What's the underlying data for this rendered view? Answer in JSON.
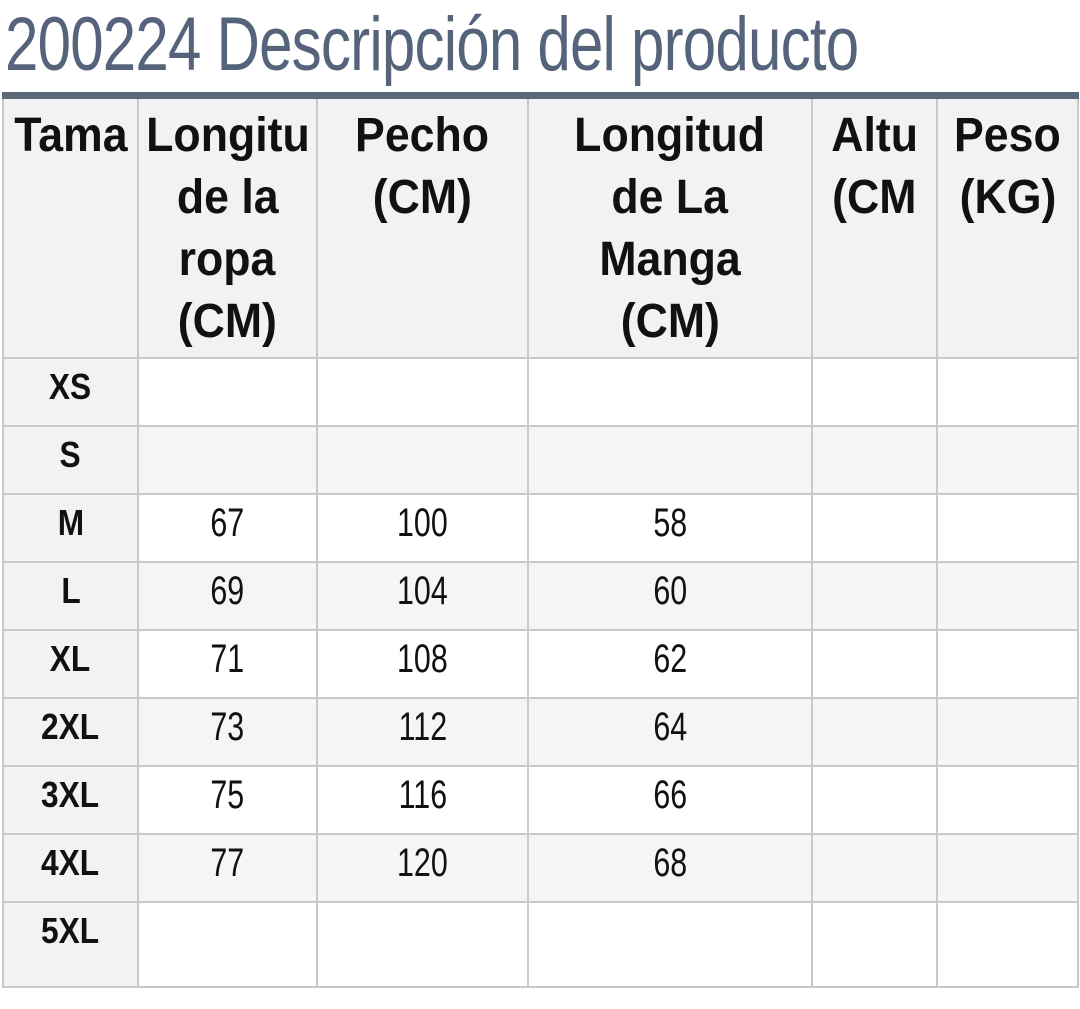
{
  "page": {
    "title": "200224 Descripción del producto"
  },
  "colors": {
    "title_text": "#55647b",
    "header_band": "#5a6877",
    "cell_border": "#c9c9cb",
    "header_bg": "#f2f2f5",
    "stripe_bg": "#f5f5f8",
    "cell_text": "#111111"
  },
  "size_table": {
    "columns": [
      {
        "name": "size",
        "lines": [
          "Tama"
        ]
      },
      {
        "name": "garment-length",
        "lines": [
          "Longitu",
          "de la",
          "ropa",
          "(CM)"
        ]
      },
      {
        "name": "chest",
        "lines": [
          "Pecho",
          "(CM)"
        ]
      },
      {
        "name": "sleeve-length",
        "lines": [
          "Longitud",
          "de La",
          "Manga",
          "(CM)"
        ]
      },
      {
        "name": "height",
        "lines": [
          "Altu",
          "(CM"
        ]
      },
      {
        "name": "weight",
        "lines": [
          "Peso",
          "(KG)"
        ]
      }
    ],
    "rows": [
      {
        "size": "XS",
        "values": [
          "",
          "",
          "",
          "",
          ""
        ]
      },
      {
        "size": "S",
        "values": [
          "",
          "",
          "",
          "",
          ""
        ]
      },
      {
        "size": "M",
        "values": [
          "67",
          "100",
          "58",
          "",
          ""
        ]
      },
      {
        "size": "L",
        "values": [
          "69",
          "104",
          "60",
          "",
          ""
        ]
      },
      {
        "size": "XL",
        "values": [
          "71",
          "108",
          "62",
          "",
          ""
        ]
      },
      {
        "size": "2XL",
        "values": [
          "73",
          "112",
          "64",
          "",
          ""
        ]
      },
      {
        "size": "3XL",
        "values": [
          "75",
          "116",
          "66",
          "",
          ""
        ]
      },
      {
        "size": "4XL",
        "values": [
          "77",
          "120",
          "68",
          "",
          ""
        ]
      },
      {
        "size": "5XL",
        "values": [
          "",
          "",
          "",
          "",
          ""
        ]
      }
    ]
  }
}
